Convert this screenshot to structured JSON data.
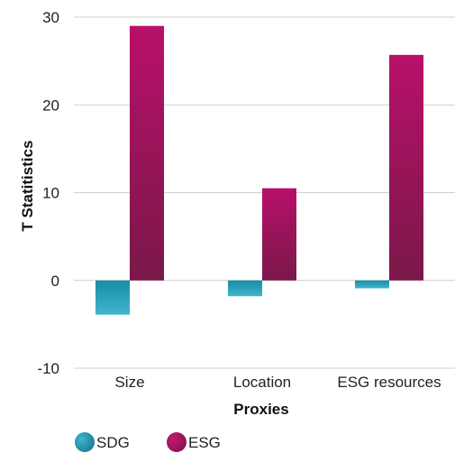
{
  "chart_data": {
    "type": "bar",
    "categories": [
      "Size",
      "Location",
      "ESG resources"
    ],
    "series": [
      {
        "name": "SDG",
        "values": [
          -3.9,
          -1.8,
          -0.9
        ],
        "color": "#1a8ca6"
      },
      {
        "name": "ESG",
        "values": [
          29.0,
          10.5,
          25.7
        ],
        "color": "#a3165f"
      }
    ],
    "xlabel": "Proxies",
    "ylabel": "T Statitistics",
    "ylim": [
      -10,
      30
    ],
    "yticks": [
      -10,
      0,
      10,
      20,
      30
    ],
    "ytick_labels": [
      "-10",
      "0",
      "10",
      "20",
      "30"
    ],
    "grid": true,
    "legend_position": "bottom-left"
  }
}
